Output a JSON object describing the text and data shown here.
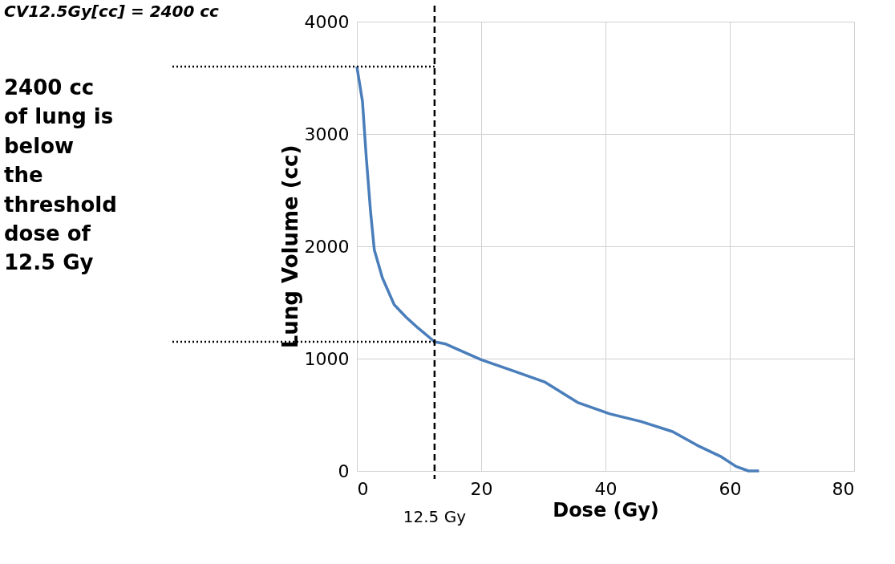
{
  "chart_data": {
    "type": "line",
    "xlabel": "Dose (Gy)",
    "ylabel": "Lung Volume (cc)",
    "x": [
      0,
      0.9,
      1.5,
      2.2,
      2.8,
      4.1,
      6,
      7.9,
      9.9,
      12.5,
      14.3,
      20,
      25.2,
      30.3,
      35.5,
      40.6,
      45.7,
      50.8,
      54.7,
      58.5,
      61,
      63,
      64.7
    ],
    "series": [
      {
        "color": "#4a7ebb",
        "values": [
          3600,
          3290,
          2800,
          2310,
          1970,
          1720,
          1480,
          1370,
          1270,
          1150,
          1130,
          990,
          890,
          790,
          610,
          510,
          440,
          350,
          230,
          130,
          40,
          0,
          0
        ]
      }
    ],
    "xlim": [
      0,
      80
    ],
    "ylim": [
      0,
      4000
    ],
    "xticks": [
      0,
      20,
      40,
      60,
      80
    ],
    "yticks": [
      0,
      1000,
      2000,
      3000,
      4000
    ],
    "grid": true,
    "legend": false,
    "marker": "none",
    "line_style": "solid",
    "ref_lines": [
      {
        "axis": "x",
        "value": 12.5,
        "label": "12.5 Gy",
        "line_style": "dashed",
        "color": "#000000"
      },
      {
        "axis": "y",
        "value": 3600,
        "line_style": "dotted",
        "color": "#000000"
      },
      {
        "axis": "y",
        "value": 1150,
        "line_style": "dotted",
        "color": "#000000"
      }
    ],
    "annotations": [
      "CV12.5Gy[cc] = 2400 cc",
      "2400 cc\nof lung is\nbelow\nthe\nthreshold\ndose of\n12.5 Gy"
    ]
  }
}
